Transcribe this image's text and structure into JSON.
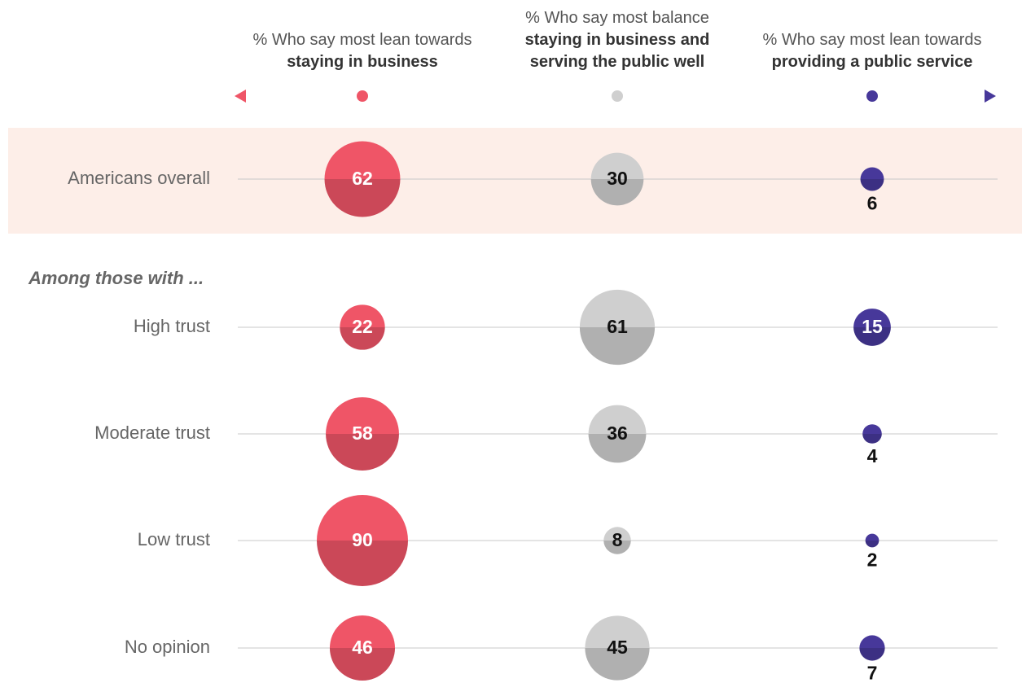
{
  "chart_data": {
    "type": "bubble",
    "section_label": "Among those with ...",
    "categories": [
      "Americans overall",
      "High trust",
      "Moderate trust",
      "Low trust",
      "No opinion"
    ],
    "highlight_category": "Americans overall",
    "series": [
      {
        "heading": "% Who say most lean towards",
        "name": "staying in business",
        "color": "#ef5567",
        "values": [
          62,
          22,
          58,
          90,
          46
        ]
      },
      {
        "heading": "% Who say most balance",
        "name": "staying in business and serving the public well",
        "color": "#cfcfcf",
        "values": [
          30,
          61,
          36,
          8,
          45
        ]
      },
      {
        "heading": "% Who say most lean towards",
        "name": "providing a public service",
        "color": "#47389a",
        "values": [
          6,
          15,
          4,
          2,
          7
        ]
      }
    ]
  }
}
